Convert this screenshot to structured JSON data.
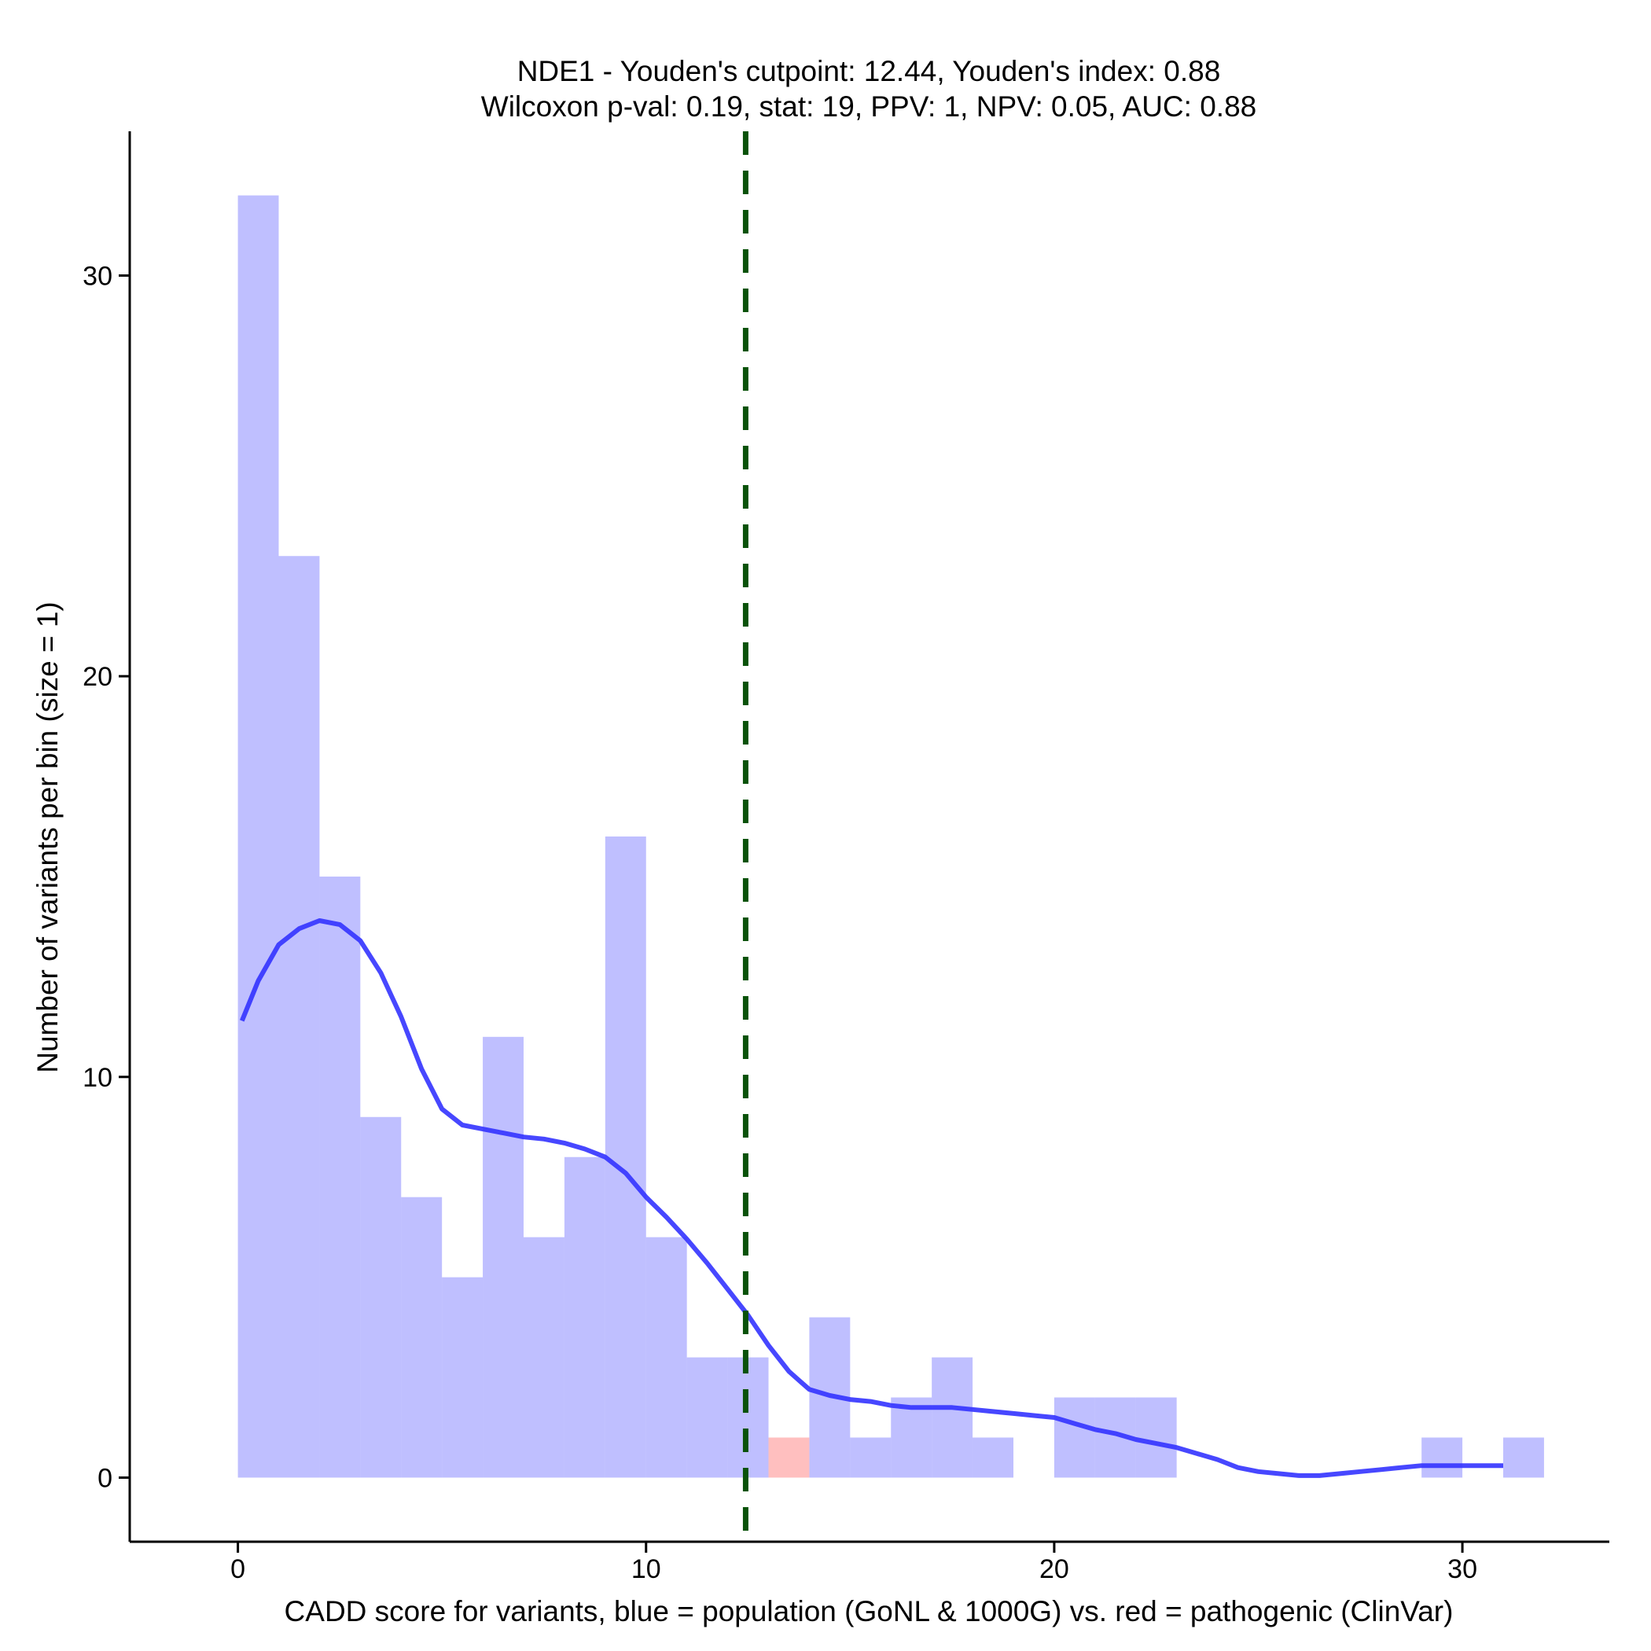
{
  "chart_data": {
    "type": "bar",
    "title": "NDE1 - Youden's cutpoint: 12.44, Youden's index: 0.88",
    "subtitle": "Wilcoxon p-val: 0.19, stat: 19, PPV: 1, NPV: 0.05, AUC: 0.88",
    "xlabel": "CADD score for variants, blue = population (GoNL & 1000G) vs. red = pathogenic (ClinVar)",
    "ylabel": "Number of variants per bin (size = 1)",
    "xlim": [
      -2.65,
      33.6
    ],
    "ylim": [
      -1.6,
      33.6
    ],
    "x_ticks": [
      0,
      10,
      20,
      30
    ],
    "y_ticks": [
      0,
      10,
      20,
      30
    ],
    "bin_width": 1,
    "series": [
      {
        "name": "population (GoNL & 1000G)",
        "color": "#7777ff",
        "opacity": 0.47,
        "bins": [
          {
            "x": 0,
            "count": 32
          },
          {
            "x": 1,
            "count": 23
          },
          {
            "x": 2,
            "count": 15
          },
          {
            "x": 3,
            "count": 9
          },
          {
            "x": 4,
            "count": 7
          },
          {
            "x": 5,
            "count": 5
          },
          {
            "x": 6,
            "count": 11
          },
          {
            "x": 7,
            "count": 6
          },
          {
            "x": 8,
            "count": 8
          },
          {
            "x": 9,
            "count": 16
          },
          {
            "x": 10,
            "count": 6
          },
          {
            "x": 11,
            "count": 3
          },
          {
            "x": 12,
            "count": 3
          },
          {
            "x": 14,
            "count": 4
          },
          {
            "x": 15,
            "count": 1
          },
          {
            "x": 16,
            "count": 2
          },
          {
            "x": 17,
            "count": 3
          },
          {
            "x": 18,
            "count": 1
          },
          {
            "x": 20,
            "count": 2
          },
          {
            "x": 21,
            "count": 2
          },
          {
            "x": 22,
            "count": 2
          },
          {
            "x": 29,
            "count": 1
          },
          {
            "x": 31,
            "count": 1
          }
        ]
      },
      {
        "name": "pathogenic (ClinVar)",
        "color": "#ffaaaa",
        "opacity": 0.75,
        "bins": [
          {
            "x": 13,
            "count": 1
          }
        ]
      }
    ],
    "density_line": {
      "name": "population density (scaled)",
      "color": "#3333ff",
      "points": [
        [
          0.1,
          11.4
        ],
        [
          0.5,
          12.4
        ],
        [
          1.0,
          13.3
        ],
        [
          1.5,
          13.7
        ],
        [
          2.0,
          13.9
        ],
        [
          2.5,
          13.8
        ],
        [
          3.0,
          13.4
        ],
        [
          3.5,
          12.6
        ],
        [
          4.0,
          11.5
        ],
        [
          4.5,
          10.2
        ],
        [
          5.0,
          9.2
        ],
        [
          5.5,
          8.8
        ],
        [
          6.0,
          8.7
        ],
        [
          6.5,
          8.6
        ],
        [
          7.0,
          8.5
        ],
        [
          7.5,
          8.45
        ],
        [
          8.0,
          8.35
        ],
        [
          8.5,
          8.2
        ],
        [
          9.0,
          8.0
        ],
        [
          9.5,
          7.6
        ],
        [
          10.0,
          7.0
        ],
        [
          10.5,
          6.5
        ],
        [
          11.0,
          5.95
        ],
        [
          11.5,
          5.35
        ],
        [
          12.0,
          4.7
        ],
        [
          12.5,
          4.05
        ],
        [
          13.0,
          3.3
        ],
        [
          13.5,
          2.65
        ],
        [
          14.0,
          2.2
        ],
        [
          14.5,
          2.05
        ],
        [
          15.0,
          1.95
        ],
        [
          15.5,
          1.9
        ],
        [
          16.0,
          1.8
        ],
        [
          16.5,
          1.75
        ],
        [
          17.0,
          1.75
        ],
        [
          17.5,
          1.75
        ],
        [
          18.0,
          1.7
        ],
        [
          18.5,
          1.65
        ],
        [
          19.0,
          1.6
        ],
        [
          19.5,
          1.55
        ],
        [
          20.0,
          1.5
        ],
        [
          20.5,
          1.35
        ],
        [
          21.0,
          1.2
        ],
        [
          21.5,
          1.1
        ],
        [
          22.0,
          0.95
        ],
        [
          22.5,
          0.85
        ],
        [
          23.0,
          0.75
        ],
        [
          23.5,
          0.6
        ],
        [
          24.0,
          0.45
        ],
        [
          24.5,
          0.25
        ],
        [
          25.0,
          0.15
        ],
        [
          25.5,
          0.1
        ],
        [
          26.0,
          0.05
        ],
        [
          26.5,
          0.05
        ],
        [
          27.0,
          0.1
        ],
        [
          27.5,
          0.15
        ],
        [
          28.0,
          0.2
        ],
        [
          28.5,
          0.25
        ],
        [
          29.0,
          0.3
        ],
        [
          29.5,
          0.3
        ],
        [
          30.0,
          0.3
        ],
        [
          30.5,
          0.3
        ],
        [
          31.0,
          0.3
        ]
      ]
    },
    "cutpoint_line": {
      "name": "Youden's cutpoint",
      "x": 12.44,
      "color": "#0a520a",
      "style": "dashed"
    }
  }
}
